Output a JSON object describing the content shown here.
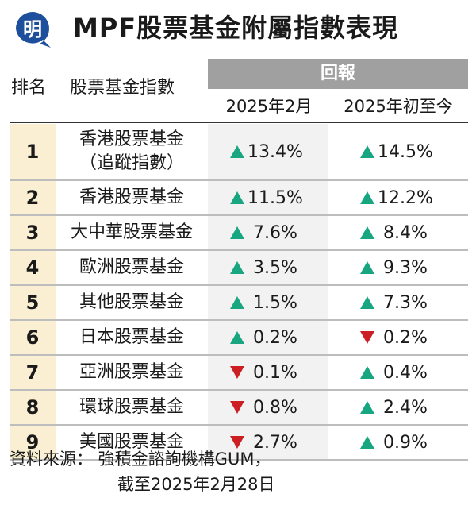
{
  "header": {
    "logo_text": "明",
    "title": "MPF股票基金附屬指數表現"
  },
  "chart_data": {
    "type": "table",
    "columns": {
      "rank": "排名",
      "name": "股票基金指數",
      "return_group": "回報",
      "feb": "2025年2月",
      "ytd": "2025年初至今"
    },
    "rows": [
      {
        "rank": "1",
        "name": "香港股票基金\n（追蹤指數）",
        "feb": {
          "dir": "up",
          "text": "13.4%",
          "value": 13.4
        },
        "ytd": {
          "dir": "up",
          "text": "14.5%",
          "value": 14.5
        }
      },
      {
        "rank": "2",
        "name": "香港股票基金",
        "feb": {
          "dir": "up",
          "text": "11.5%",
          "value": 11.5
        },
        "ytd": {
          "dir": "up",
          "text": "12.2%",
          "value": 12.2
        }
      },
      {
        "rank": "3",
        "name": "大中華股票基金",
        "feb": {
          "dir": "up",
          "text": " 7.6%",
          "value": 7.6
        },
        "ytd": {
          "dir": "up",
          "text": " 8.4%",
          "value": 8.4
        }
      },
      {
        "rank": "4",
        "name": "歐洲股票基金",
        "feb": {
          "dir": "up",
          "text": " 3.5%",
          "value": 3.5
        },
        "ytd": {
          "dir": "up",
          "text": " 9.3%",
          "value": 9.3
        }
      },
      {
        "rank": "5",
        "name": "其他股票基金",
        "feb": {
          "dir": "up",
          "text": " 1.5%",
          "value": 1.5
        },
        "ytd": {
          "dir": "up",
          "text": " 7.3%",
          "value": 7.3
        }
      },
      {
        "rank": "6",
        "name": "日本股票基金",
        "feb": {
          "dir": "up",
          "text": " 0.2%",
          "value": 0.2
        },
        "ytd": {
          "dir": "down",
          "text": " 0.2%",
          "value": -0.2
        }
      },
      {
        "rank": "7",
        "name": "亞洲股票基金",
        "feb": {
          "dir": "down",
          "text": " 0.1%",
          "value": -0.1
        },
        "ytd": {
          "dir": "up",
          "text": " 0.4%",
          "value": 0.4
        }
      },
      {
        "rank": "8",
        "name": "環球股票基金",
        "feb": {
          "dir": "down",
          "text": " 0.8%",
          "value": -0.8
        },
        "ytd": {
          "dir": "up",
          "text": " 2.4%",
          "value": 2.4
        }
      },
      {
        "rank": "9",
        "name": "美國股票基金",
        "feb": {
          "dir": "down",
          "text": " 2.7%",
          "value": -2.7
        },
        "ytd": {
          "dir": "up",
          "text": " 0.9%",
          "value": 0.9
        }
      }
    ]
  },
  "footer": {
    "line1": "資料來源： 強積金諮詢機構GUM，",
    "line2": "截至2025年2月28日"
  },
  "colors": {
    "up": "#17a680",
    "down": "#cc1f24",
    "logo_blue": "#1d4f9c",
    "header_gray": "#a0a0a0",
    "rank_bg": "#faefd2"
  }
}
